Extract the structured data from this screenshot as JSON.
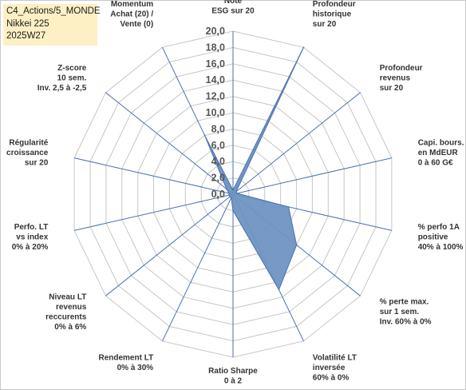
{
  "info": {
    "line1": "C4_Actions/5_MONDE",
    "line2": "Nikkei 225",
    "line3": "2025W27"
  },
  "chart_data": {
    "type": "radar",
    "rmin": 0,
    "rmax": 20,
    "tick_step": 2,
    "tick_labels": [
      "0,0",
      "2,0",
      "4,0",
      "6,0",
      "8,0",
      "10,0",
      "12,0",
      "14,0",
      "16,0",
      "18,0",
      "20,0"
    ],
    "grid": true,
    "axes": [
      {
        "label": [
          "Note",
          "ESG sur 20"
        ],
        "value": 0.5
      },
      {
        "label": [
          "Profondeur",
          "historique",
          "sur 20"
        ],
        "value": 20
      },
      {
        "label": [
          "Profondeur",
          "revenus",
          "sur 20"
        ],
        "value": 0.5
      },
      {
        "label": [
          "Capi. bours.",
          "en MdEUR",
          "0 à 60 G€"
        ],
        "value": 0.5
      },
      {
        "label": [
          "% perfo 1A",
          "positive",
          "40% à 100%"
        ],
        "value": 7
      },
      {
        "label": [
          "% perte max.",
          "sur 1 sem.",
          "Inv. 60% à 0%"
        ],
        "value": 10
      },
      {
        "label": [
          "Volatilité LT",
          "inversée",
          "60% à 0%"
        ],
        "value": 13
      },
      {
        "label": [
          "Ratio Sharpe",
          "0 à 2"
        ],
        "value": 2
      },
      {
        "label": [
          "Rendement LT",
          "0% à 30%"
        ],
        "value": 0.5
      },
      {
        "label": [
          "Niveau LT",
          "revenus",
          "reccurents",
          "0% à 6%"
        ],
        "value": 0.5
      },
      {
        "label": [
          "Perfo. LT",
          "vs index",
          "0% à 20%"
        ],
        "value": 0.5
      },
      {
        "label": [
          "Régularité",
          "croissance",
          "sur 20"
        ],
        "value": 0.5
      },
      {
        "label": [
          "Z-score",
          "10 sem.",
          "Inv. 2,5 à -2,5"
        ],
        "value": 1
      },
      {
        "label": [
          "Momentum",
          "Achat (20) /",
          "Vente (0)"
        ],
        "value": 8
      }
    ],
    "fill_color": "#6f93c2",
    "fill_stroke": "#4a72ad",
    "spoke_color": "#4a72ad",
    "grid_color": "#c6c6c6"
  }
}
